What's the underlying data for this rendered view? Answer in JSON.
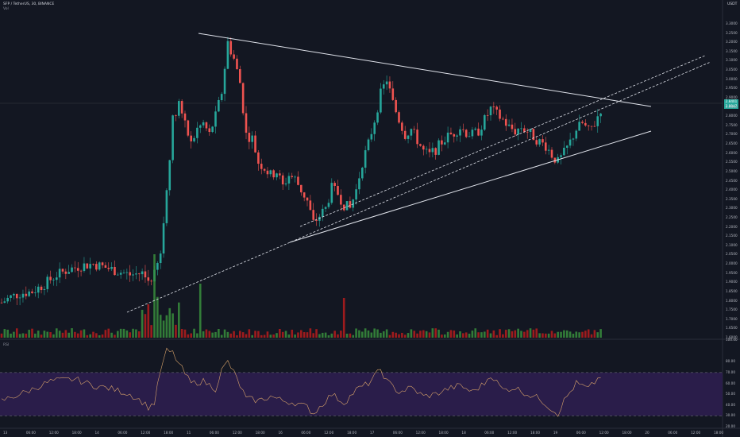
{
  "header": {
    "symbol_line": "SFP / TetherUS, 30, BINANCE",
    "volume_label": "Vol",
    "currency": "USDT",
    "rsi_label": "RSI"
  },
  "price_axis": {
    "labels": [
      "3.3000",
      "3.2500",
      "3.2000",
      "3.1500",
      "3.1000",
      "3.0500",
      "3.0000",
      "2.9500",
      "2.9000",
      "2.8500",
      "2.8000",
      "2.7500",
      "2.7000",
      "2.6500",
      "2.6000",
      "2.5500",
      "2.5000",
      "2.4500",
      "2.4000",
      "2.3500",
      "2.3000",
      "2.2500",
      "2.2000",
      "2.1500",
      "2.1000",
      "2.0500",
      "2.0000",
      "1.9500",
      "1.9000",
      "1.8500",
      "1.8000",
      "1.7500",
      "1.7000",
      "1.6500",
      "1.6000"
    ],
    "current_price": "2.8401",
    "current_price_sub": "2.8047"
  },
  "rsi_axis": {
    "labels": [
      "100.00",
      "80.00",
      "70.00",
      "60.00",
      "50.00",
      "40.00",
      "30.00",
      "20.00"
    ]
  },
  "time_axis": {
    "labels": [
      "13",
      "06:00",
      "12:00",
      "18:00",
      "14",
      "06:00",
      "12:00",
      "18:00",
      "11",
      "06:00",
      "12:00",
      "18:00",
      "16",
      "06:00",
      "12:00",
      "18:00",
      "17",
      "06:00",
      "12:00",
      "18:00",
      "18",
      "06:00",
      "12:00",
      "18:00",
      "19",
      "06:00",
      "12:00",
      "18:00",
      "20",
      "06:00",
      "12:00",
      "18:00"
    ]
  },
  "colors": {
    "background": "#131722",
    "up": "#26a69a",
    "down": "#ef5350",
    "vol_up": "#388e3c",
    "vol_down": "#b71c1c",
    "trendline": "#e0e3eb",
    "rsi_line": "#d8a36a",
    "rsi_band": "#2a1d4a"
  },
  "chart_data": {
    "type": "candlestick",
    "symbol": "SFP / TetherUS",
    "interval": "30",
    "exchange": "BINANCE",
    "ylim": [
      1.6,
      3.3
    ],
    "rsi_ylim": [
      20,
      100
    ],
    "rsi_levels": [
      70,
      30
    ],
    "close_path": [
      [
        0,
        1.79
      ],
      [
        3,
        1.82
      ],
      [
        6,
        1.84
      ],
      [
        10,
        1.85
      ],
      [
        14,
        1.89
      ],
      [
        18,
        1.94
      ],
      [
        22,
        1.97
      ],
      [
        26,
        1.99
      ],
      [
        30,
        2.0
      ],
      [
        34,
        1.98
      ],
      [
        38,
        1.96
      ],
      [
        42,
        1.94
      ],
      [
        46,
        1.95
      ],
      [
        48,
        1.91
      ],
      [
        50,
        1.94
      ],
      [
        52,
        2.05
      ],
      [
        54,
        2.4
      ],
      [
        56,
        2.78
      ],
      [
        58,
        2.88
      ],
      [
        60,
        2.75
      ],
      [
        62,
        2.65
      ],
      [
        64,
        2.73
      ],
      [
        66,
        2.76
      ],
      [
        68,
        2.7
      ],
      [
        70,
        2.8
      ],
      [
        72,
        2.93
      ],
      [
        74,
        3.2
      ],
      [
        76,
        3.11
      ],
      [
        78,
        2.98
      ],
      [
        80,
        2.7
      ],
      [
        82,
        2.68
      ],
      [
        84,
        2.55
      ],
      [
        86,
        2.52
      ],
      [
        88,
        2.48
      ],
      [
        90,
        2.5
      ],
      [
        92,
        2.42
      ],
      [
        94,
        2.48
      ],
      [
        96,
        2.46
      ],
      [
        98,
        2.4
      ],
      [
        100,
        2.34
      ],
      [
        102,
        2.22
      ],
      [
        104,
        2.26
      ],
      [
        106,
        2.3
      ],
      [
        108,
        2.41
      ],
      [
        110,
        2.38
      ],
      [
        112,
        2.32
      ],
      [
        114,
        2.3
      ],
      [
        116,
        2.4
      ],
      [
        118,
        2.55
      ],
      [
        120,
        2.65
      ],
      [
        122,
        2.78
      ],
      [
        124,
        2.92
      ],
      [
        126,
        3.0
      ],
      [
        128,
        2.87
      ],
      [
        130,
        2.78
      ],
      [
        132,
        2.7
      ],
      [
        134,
        2.73
      ],
      [
        136,
        2.67
      ],
      [
        138,
        2.61
      ],
      [
        140,
        2.59
      ],
      [
        142,
        2.62
      ],
      [
        144,
        2.66
      ],
      [
        146,
        2.69
      ],
      [
        148,
        2.71
      ],
      [
        150,
        2.74
      ],
      [
        152,
        2.71
      ],
      [
        154,
        2.7
      ],
      [
        156,
        2.72
      ],
      [
        158,
        2.78
      ],
      [
        160,
        2.84
      ],
      [
        162,
        2.81
      ],
      [
        164,
        2.78
      ],
      [
        166,
        2.74
      ],
      [
        168,
        2.72
      ],
      [
        170,
        2.74
      ],
      [
        172,
        2.72
      ],
      [
        174,
        2.69
      ],
      [
        176,
        2.66
      ],
      [
        178,
        2.64
      ],
      [
        180,
        2.59
      ],
      [
        182,
        2.55
      ],
      [
        184,
        2.6
      ],
      [
        186,
        2.66
      ],
      [
        188,
        2.73
      ],
      [
        190,
        2.76
      ],
      [
        192,
        2.72
      ],
      [
        194,
        2.76
      ],
      [
        196,
        2.84
      ]
    ],
    "rsi_path": [
      [
        0,
        44
      ],
      [
        8,
        52
      ],
      [
        16,
        62
      ],
      [
        24,
        64
      ],
      [
        30,
        58
      ],
      [
        36,
        55
      ],
      [
        42,
        50
      ],
      [
        46,
        43
      ],
      [
        48,
        38
      ],
      [
        50,
        42
      ],
      [
        52,
        72
      ],
      [
        54,
        90
      ],
      [
        56,
        88
      ],
      [
        58,
        78
      ],
      [
        62,
        60
      ],
      [
        66,
        62
      ],
      [
        70,
        55
      ],
      [
        72,
        72
      ],
      [
        74,
        80
      ],
      [
        76,
        70
      ],
      [
        80,
        46
      ],
      [
        84,
        44
      ],
      [
        88,
        48
      ],
      [
        92,
        44
      ],
      [
        96,
        42
      ],
      [
        100,
        38
      ],
      [
        102,
        32
      ],
      [
        104,
        38
      ],
      [
        108,
        50
      ],
      [
        112,
        42
      ],
      [
        116,
        54
      ],
      [
        120,
        60
      ],
      [
        124,
        73
      ],
      [
        126,
        62
      ],
      [
        130,
        52
      ],
      [
        134,
        56
      ],
      [
        138,
        48
      ],
      [
        142,
        50
      ],
      [
        146,
        55
      ],
      [
        150,
        58
      ],
      [
        154,
        52
      ],
      [
        158,
        60
      ],
      [
        160,
        68
      ],
      [
        164,
        54
      ],
      [
        168,
        56
      ],
      [
        172,
        50
      ],
      [
        176,
        46
      ],
      [
        180,
        36
      ],
      [
        182,
        32
      ],
      [
        184,
        44
      ],
      [
        188,
        60
      ],
      [
        192,
        55
      ],
      [
        196,
        67
      ]
    ]
  }
}
